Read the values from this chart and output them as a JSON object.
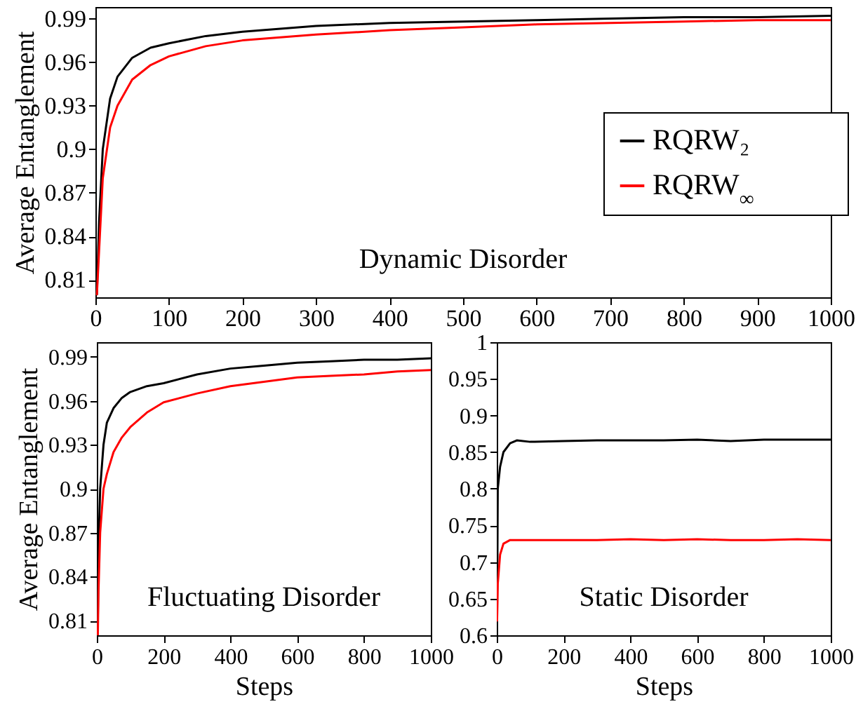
{
  "chart_data": [
    {
      "type": "line",
      "ylabel": "Average Entanglement",
      "annotations": [
        "Dynamic Disorder"
      ],
      "xlim": [
        0,
        1000
      ],
      "xticks": [
        0,
        100,
        200,
        300,
        400,
        500,
        600,
        700,
        800,
        900,
        1000
      ],
      "ylim": [
        0.798,
        0.998
      ],
      "yticks": [
        0.81,
        0.84,
        0.87,
        0.9,
        0.93,
        0.96,
        0.99
      ],
      "legend": "right",
      "grid": false,
      "x": [
        2,
        5,
        10,
        20,
        30,
        50,
        75,
        100,
        150,
        200,
        300,
        400,
        500,
        600,
        700,
        800,
        900,
        1000
      ],
      "series": [
        {
          "name": "RQRW₂",
          "color": "#000000",
          "values": [
            0.8,
            0.85,
            0.9,
            0.935,
            0.95,
            0.963,
            0.97,
            0.973,
            0.978,
            0.981,
            0.985,
            0.987,
            0.988,
            0.989,
            0.99,
            0.991,
            0.991,
            0.992
          ]
        },
        {
          "name": "RQRW$_{∞}$",
          "color": "#ff0000",
          "values": [
            0.8,
            0.83,
            0.88,
            0.915,
            0.93,
            0.948,
            0.958,
            0.964,
            0.971,
            0.975,
            0.979,
            0.982,
            0.984,
            0.986,
            0.987,
            0.988,
            0.989,
            0.989
          ]
        }
      ]
    },
    {
      "type": "line",
      "xlabel": "Steps",
      "ylabel": "Average Entanglement",
      "annotations": [
        "Fluctuating Disorder"
      ],
      "xlim": [
        0,
        1000
      ],
      "xticks": [
        0,
        200,
        400,
        600,
        800,
        1000
      ],
      "ylim": [
        0.8,
        1.0
      ],
      "yticks": [
        0.81,
        0.84,
        0.87,
        0.9,
        0.93,
        0.96,
        0.99
      ],
      "grid": false,
      "x": [
        3,
        5,
        10,
        20,
        30,
        50,
        75,
        100,
        150,
        200,
        300,
        400,
        500,
        600,
        700,
        800,
        900,
        1000
      ],
      "series": [
        {
          "color": "#000000",
          "values": [
            0.81,
            0.86,
            0.9,
            0.93,
            0.945,
            0.955,
            0.962,
            0.966,
            0.97,
            0.972,
            0.978,
            0.982,
            0.984,
            0.986,
            0.987,
            0.988,
            0.988,
            0.989
          ]
        },
        {
          "color": "#ff0000",
          "values": [
            0.8,
            0.83,
            0.87,
            0.9,
            0.91,
            0.925,
            0.935,
            0.942,
            0.952,
            0.959,
            0.965,
            0.97,
            0.973,
            0.976,
            0.977,
            0.978,
            0.98,
            0.981
          ]
        }
      ]
    },
    {
      "type": "line",
      "xlabel": "Steps",
      "annotations": [
        "Static Disorder"
      ],
      "xlim": [
        0,
        1000
      ],
      "xticks": [
        0,
        200,
        400,
        600,
        800,
        1000
      ],
      "ylim": [
        0.6,
        1.0
      ],
      "yticks": [
        0.6,
        0.65,
        0.7,
        0.75,
        0.8,
        0.85,
        0.9,
        0.95,
        1
      ],
      "grid": false,
      "x": [
        1,
        3,
        10,
        20,
        40,
        60,
        100,
        200,
        300,
        400,
        500,
        600,
        700,
        800,
        900,
        1000
      ],
      "series": [
        {
          "color": "#000000",
          "values": [
            0.62,
            0.8,
            0.83,
            0.85,
            0.862,
            0.866,
            0.864,
            0.865,
            0.866,
            0.866,
            0.866,
            0.867,
            0.865,
            0.867,
            0.867,
            0.867
          ]
        },
        {
          "color": "#ff0000",
          "values": [
            0.62,
            0.67,
            0.71,
            0.725,
            0.73,
            0.73,
            0.73,
            0.73,
            0.73,
            0.731,
            0.73,
            0.731,
            0.73,
            0.73,
            0.731,
            0.73
          ]
        }
      ]
    }
  ]
}
